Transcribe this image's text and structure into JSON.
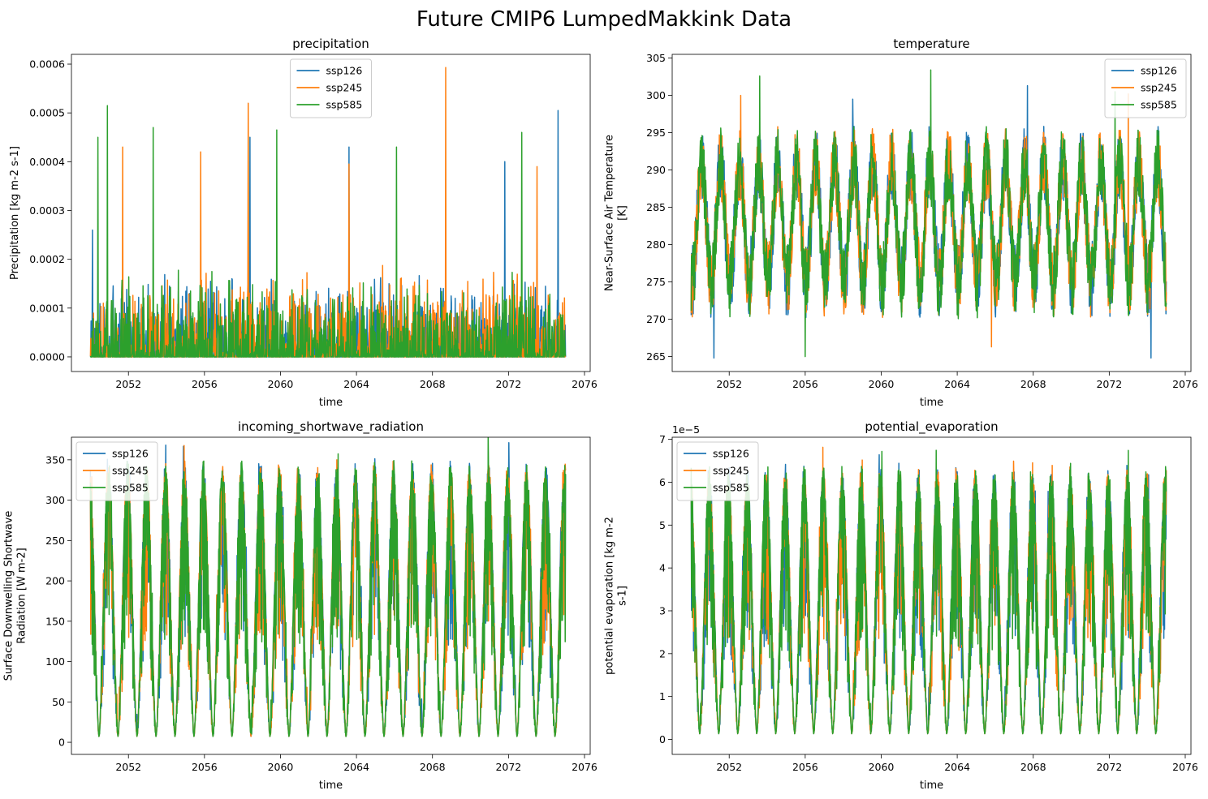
{
  "figure": {
    "title": "Future CMIP6 LumpedMakkink Data"
  },
  "series_colors": {
    "ssp126": "#1f77b4",
    "ssp245": "#ff7f0e",
    "ssp585": "#2ca02c"
  },
  "chart_data": [
    {
      "type": "line",
      "title": "precipitation",
      "xlabel": "time",
      "ylabel": [
        "Precipitation [kg m-2 s-1]"
      ],
      "xlim": [
        2049.0,
        2076.3
      ],
      "ylim": [
        -3e-05,
        0.00062
      ],
      "xticks": [
        2052,
        2056,
        2060,
        2064,
        2068,
        2072,
        2076
      ],
      "yticks": [
        0.0,
        0.0001,
        0.0002,
        0.0003,
        0.0004,
        0.0005,
        0.0006
      ],
      "ytick_labels": [
        "0.0000",
        "0.0001",
        "0.0002",
        "0.0003",
        "0.0004",
        "0.0005",
        "0.0006"
      ],
      "offset_text": "",
      "legend_position": "upper center",
      "pattern": "spiky",
      "base": 0.0,
      "noise": 9e-05,
      "x_range": [
        2050.0,
        2075.0
      ],
      "series": [
        {
          "name": "ssp126",
          "peaks": [
            [
              2050.1,
              0.00026
            ],
            [
              2058.4,
              0.00045
            ],
            [
              2063.6,
              0.00043
            ],
            [
              2071.8,
              0.0004
            ],
            [
              2074.6,
              0.000505
            ]
          ]
        },
        {
          "name": "ssp245",
          "peaks": [
            [
              2051.7,
              0.00043
            ],
            [
              2055.8,
              0.00042
            ],
            [
              2058.3,
              0.00052
            ],
            [
              2063.6,
              0.000395
            ],
            [
              2068.7,
              0.000593
            ],
            [
              2073.5,
              0.00039
            ]
          ]
        },
        {
          "name": "ssp585",
          "peaks": [
            [
              2050.4,
              0.00045
            ],
            [
              2050.9,
              0.000515
            ],
            [
              2053.3,
              0.00047
            ],
            [
              2059.8,
              0.000465
            ],
            [
              2066.1,
              0.00043
            ],
            [
              2072.7,
              0.00046
            ]
          ]
        }
      ]
    },
    {
      "type": "line",
      "title": "temperature",
      "xlabel": "time",
      "ylabel": [
        "Near-Surface Air Temperature",
        "[K]"
      ],
      "xlim": [
        2049.0,
        2076.3
      ],
      "ylim": [
        263.0,
        305.5
      ],
      "xticks": [
        2052,
        2056,
        2060,
        2064,
        2068,
        2072,
        2076
      ],
      "yticks": [
        265,
        270,
        275,
        280,
        285,
        290,
        295,
        300,
        305
      ],
      "ytick_labels": [
        "265",
        "270",
        "275",
        "280",
        "285",
        "290",
        "295",
        "300",
        "305"
      ],
      "offset_text": "",
      "legend_position": "upper right",
      "pattern": "seasonal",
      "base": 283.0,
      "amplitude": 8.0,
      "noise": 5.0,
      "phase": 0.55,
      "x_range": [
        2050.0,
        2075.0
      ],
      "series": [
        {
          "name": "ssp126",
          "peaks": [
            [
              2051.2,
              264.8
            ],
            [
              2058.5,
              299.5
            ],
            [
              2067.7,
              301.3
            ],
            [
              2074.2,
              264.8
            ]
          ]
        },
        {
          "name": "ssp245",
          "peaks": [
            [
              2052.6,
              300.0
            ],
            [
              2065.8,
              266.3
            ],
            [
              2073.0,
              300.2
            ]
          ]
        },
        {
          "name": "ssp585",
          "peaks": [
            [
              2053.6,
              302.6
            ],
            [
              2056.0,
              265.0
            ],
            [
              2062.6,
              303.4
            ],
            [
              2072.3,
              300.5
            ]
          ]
        }
      ]
    },
    {
      "type": "line",
      "title": "incoming_shortwave_radiation",
      "xlabel": "time",
      "ylabel": [
        "Surface Downwelling Shortwave",
        "Radiation [W m-2]"
      ],
      "xlim": [
        2049.0,
        2076.3
      ],
      "ylim": [
        -15.0,
        378.0
      ],
      "xticks": [
        2052,
        2056,
        2060,
        2064,
        2068,
        2072,
        2076
      ],
      "yticks": [
        0,
        50,
        100,
        150,
        200,
        250,
        300,
        350
      ],
      "ytick_labels": [
        "0",
        "50",
        "100",
        "150",
        "200",
        "250",
        "300",
        "350"
      ],
      "offset_text": "",
      "legend_position": "upper left",
      "pattern": "radiation",
      "peak": 355.0,
      "phase": 0.45,
      "x_range": [
        2050.0,
        2075.0
      ],
      "series": [
        {
          "name": "ssp126",
          "peaks": []
        },
        {
          "name": "ssp245",
          "peaks": []
        },
        {
          "name": "ssp585",
          "peaks": []
        }
      ]
    },
    {
      "type": "line",
      "title": "potential_evaporation",
      "xlabel": "time",
      "ylabel": [
        "potential evaporation [kg m-2",
        "s-1]"
      ],
      "xlim": [
        2049.0,
        2076.3
      ],
      "ylim": [
        -0.35,
        7.05
      ],
      "xticks": [
        2052,
        2056,
        2060,
        2064,
        2068,
        2072,
        2076
      ],
      "yticks": [
        0,
        1,
        2,
        3,
        4,
        5,
        6,
        7
      ],
      "ytick_labels": [
        "0",
        "1",
        "2",
        "3",
        "4",
        "5",
        "6",
        "7"
      ],
      "offset_text": "1e−5",
      "legend_position": "upper left",
      "pattern": "radiation",
      "peak": 6.5,
      "phase": 0.45,
      "x_range": [
        2050.0,
        2075.0
      ],
      "series": [
        {
          "name": "ssp126",
          "peaks": []
        },
        {
          "name": "ssp245",
          "peaks": []
        },
        {
          "name": "ssp585",
          "peaks": []
        }
      ]
    }
  ]
}
